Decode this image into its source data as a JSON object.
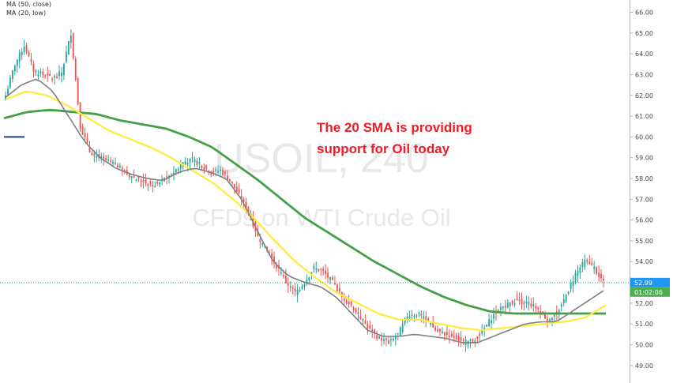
{
  "chart_data": {
    "type": "candlestick",
    "watermark": {
      "symbol": "USOIL, 240",
      "description": "CFDs on WTI Crude Oil"
    },
    "legend": [
      {
        "label": "MA (50, close)"
      },
      {
        "label": "MA (20, low)"
      }
    ],
    "annotation": [
      "The 20 SMA is providing",
      "support for Oil today"
    ],
    "price_axis": {
      "ylim": [
        48.65,
        66.4
      ],
      "ticks": [
        "66.00",
        "65.00",
        "64.00",
        "63.00",
        "62.00",
        "61.00",
        "60.00",
        "59.00",
        "58.00",
        "57.00",
        "56.00",
        "55.00",
        "54.00",
        "53.00",
        "52.00",
        "51.00",
        "50.00",
        "49.00"
      ],
      "current_price": "52.99",
      "countdown": "01:02:06"
    },
    "colors": {
      "up": "#26a69a",
      "down": "#ef5350",
      "ma20": "#808080",
      "ma50": "#ffeb3b",
      "ma100": "#43a047",
      "label_bg": "#2196f3",
      "timer_bg": "#4caf50"
    },
    "candles_per_anchor": 4,
    "price_anchors": [
      62.0,
      63.5,
      64.4,
      63.2,
      63.0,
      62.8,
      63.1,
      65.0,
      60.5,
      59.3,
      59.0,
      58.8,
      58.6,
      58.2,
      58.0,
      57.8,
      57.6,
      58.0,
      58.3,
      58.8,
      58.9,
      58.6,
      58.3,
      58.4,
      57.9,
      57.2,
      56.4,
      55.2,
      54.5,
      53.8,
      53.0,
      52.5,
      53.0,
      53.7,
      53.5,
      53.0,
      52.3,
      51.9,
      51.3,
      50.7,
      50.3,
      50.1,
      50.5,
      51.4,
      51.5,
      51.2,
      50.7,
      50.5,
      50.4,
      50.1,
      50.2,
      50.6,
      51.3,
      51.8,
      52.0,
      52.1,
      52.0,
      51.7,
      51.2,
      51.5,
      52.4,
      53.4,
      54.0,
      53.7,
      52.99
    ],
    "ma20_anchors": [
      61.9,
      62.5,
      62.8,
      62.2,
      61.0,
      59.8,
      59.0,
      58.5,
      58.2,
      58.0,
      57.9,
      58.3,
      58.5,
      58.3,
      58.0,
      57.0,
      55.5,
      54.0,
      53.3,
      53.0,
      52.8,
      52.3,
      51.5,
      50.7,
      50.4,
      50.4,
      50.5,
      50.4,
      50.3,
      50.1,
      50.1,
      50.4,
      50.7,
      51.0,
      51.1,
      51.1,
      51.6,
      52.1,
      52.6
    ],
    "ma50_anchors": [
      61.8,
      62.2,
      62.0,
      61.5,
      60.9,
      60.3,
      59.9,
      59.5,
      59.0,
      58.4,
      57.8,
      57.0,
      56.1,
      55.0,
      54.0,
      53.2,
      52.5,
      52.0,
      51.5,
      51.2,
      51.2,
      51.0,
      50.8,
      50.7,
      50.8,
      50.9,
      51.0,
      51.1,
      51.3,
      51.9
    ],
    "ma100_anchors": [
      60.9,
      61.2,
      61.3,
      61.2,
      61.1,
      60.8,
      60.6,
      60.4,
      60.0,
      59.5,
      58.7,
      57.9,
      57.0,
      56.1,
      55.4,
      54.7,
      54.0,
      53.4,
      52.8,
      52.3,
      51.9,
      51.6,
      51.5,
      51.5,
      51.5,
      51.5,
      51.5
    ],
    "left_marker_price": 60.0,
    "ylabel": "",
    "xlabel": ""
  }
}
